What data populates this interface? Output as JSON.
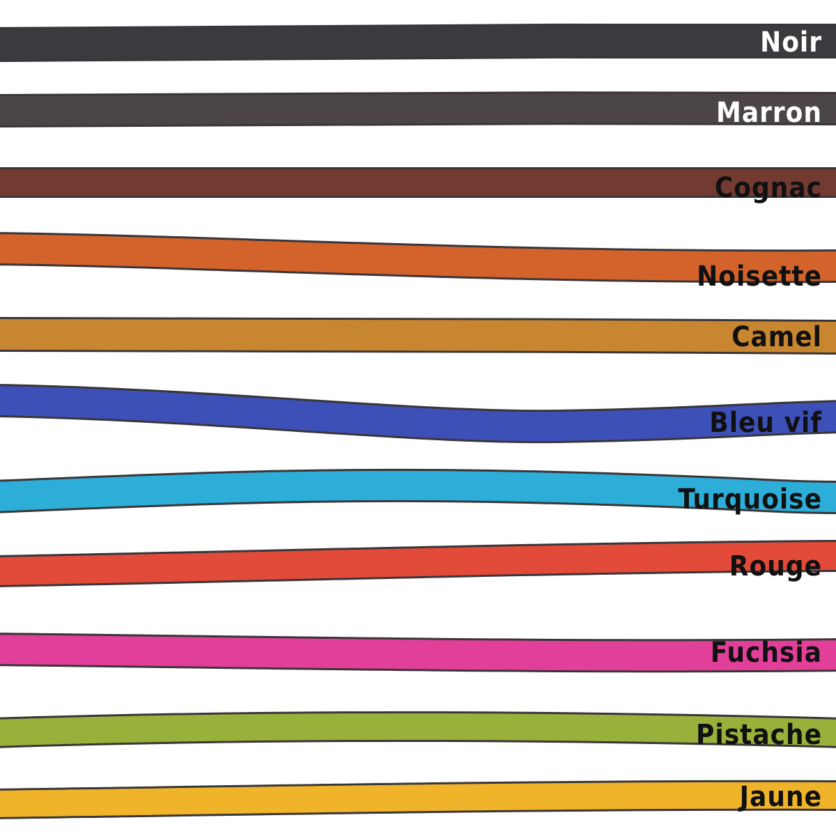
{
  "swatches": [
    {
      "label": "Noir"
    },
    {
      "label": "Marron"
    },
    {
      "label": "Cognac"
    },
    {
      "label": "Noisette"
    },
    {
      "label": "Camel"
    },
    {
      "label": "Bleu vif"
    },
    {
      "label": "Turquoise"
    },
    {
      "label": "Rouge"
    },
    {
      "label": "Fuchsia"
    },
    {
      "label": "Pistache"
    },
    {
      "label": "Jaune"
    }
  ]
}
